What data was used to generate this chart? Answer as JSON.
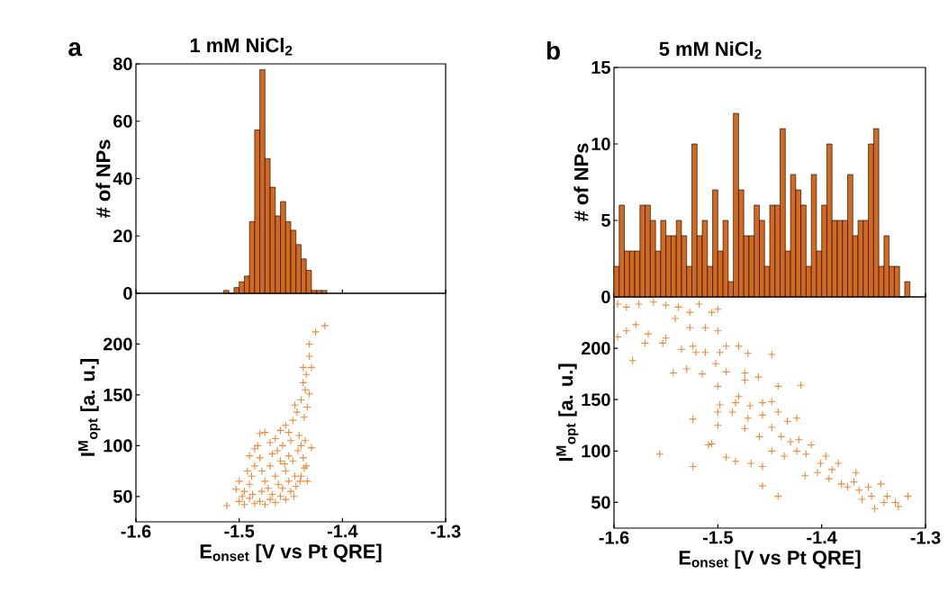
{
  "chart_data": [
    {
      "type": "histogram",
      "title": "1 mM NiCl$_{2}$",
      "ylabel": "# of NPs",
      "annotations": [
        "a"
      ],
      "color": "#d2691e",
      "bins": [
        -1.515,
        -1.51,
        -1.505,
        -1.5,
        -1.495,
        -1.49,
        -1.485,
        -1.48,
        -1.475,
        -1.47,
        -1.465,
        -1.46,
        -1.455,
        -1.45,
        -1.445,
        -1.44,
        -1.435,
        -1.43,
        -1.425,
        -1.42,
        -1.415
      ],
      "values": [
        1,
        0,
        2,
        4,
        6,
        25,
        57,
        78,
        47,
        37,
        27,
        32,
        25,
        22,
        17,
        12,
        8,
        1,
        1,
        1
      ],
      "xlim": [
        -1.6,
        -1.3
      ],
      "ylim": [
        0,
        80
      ],
      "xticks": [
        {
          "value": -1.6,
          "label": null
        },
        {
          "value": -1.5,
          "label": null
        },
        {
          "value": -1.4,
          "label": null
        },
        {
          "value": -1.3,
          "label": null
        }
      ],
      "yticks": [
        0,
        20,
        40,
        60,
        80
      ],
      "tick_labels": "y"
    },
    {
      "type": "scatter",
      "xlabel": "E$_{onset}$ [V vs Pt QRE]",
      "ylabel": "I$^{M}$$_{opt}$ [a. u.]",
      "color": "#f0893a",
      "marker": "cross",
      "x": [
        -1.512,
        -1.503,
        -1.5,
        -1.495,
        -1.49,
        -1.485,
        -1.48,
        -1.475,
        -1.47,
        -1.465,
        -1.46,
        -1.455,
        -1.45,
        -1.445,
        -1.44,
        -1.435,
        -1.495,
        -1.49,
        -1.488,
        -1.485,
        -1.49,
        -1.485,
        -1.48,
        -1.478,
        -1.475,
        -1.472,
        -1.47,
        -1.468,
        -1.465,
        -1.462,
        -1.46,
        -1.458,
        -1.455,
        -1.452,
        -1.45,
        -1.448,
        -1.446,
        -1.443,
        -1.442,
        -1.44,
        -1.438,
        -1.437,
        -1.441,
        -1.436,
        -1.48,
        -1.475,
        -1.482,
        -1.47,
        -1.465,
        -1.46,
        -1.455,
        -1.452,
        -1.448,
        -1.446,
        -1.444,
        -1.44,
        -1.437,
        -1.434,
        -1.432,
        -1.436,
        -1.438,
        -1.435,
        -1.438,
        -1.43,
        -1.432,
        -1.432,
        -1.426,
        -1.417,
        -1.43,
        -1.434,
        -1.5,
        -1.492,
        -1.497,
        -1.487,
        -1.478,
        -1.468,
        -1.458,
        -1.452,
        -1.447,
        -1.463,
        -1.456
      ],
      "values": [
        41,
        57,
        45,
        42,
        48,
        43,
        45,
        42,
        47,
        44,
        50,
        47,
        55,
        60,
        70,
        80,
        55,
        62,
        70,
        80,
        90,
        97,
        88,
        75,
        65,
        58,
        80,
        92,
        70,
        62,
        85,
        100,
        75,
        90,
        105,
        85,
        70,
        95,
        110,
        100,
        88,
        78,
        65,
        105,
        112,
        113,
        100,
        103,
        107,
        115,
        120,
        113,
        125,
        140,
        133,
        145,
        128,
        138,
        151,
        155,
        162,
        170,
        177,
        177,
        188,
        200,
        212,
        218,
        98,
        65,
        65,
        75,
        50,
        52,
        55,
        52,
        58,
        65,
        50,
        95,
        82
      ],
      "xlim": [
        -1.6,
        -1.3
      ],
      "ylim": [
        25,
        250
      ],
      "xticks": [
        -1.6,
        -1.5,
        -1.4,
        -1.3
      ],
      "yticks": [
        50,
        100,
        150,
        200
      ]
    },
    {
      "type": "histogram",
      "title": "5 mM NiCl$_{2}$",
      "ylabel": "# of NPs",
      "annotations": [
        "b"
      ],
      "color": "#d2691e",
      "bins": [
        -1.6,
        -1.595,
        -1.59,
        -1.585,
        -1.58,
        -1.575,
        -1.57,
        -1.565,
        -1.56,
        -1.555,
        -1.55,
        -1.545,
        -1.54,
        -1.535,
        -1.53,
        -1.525,
        -1.52,
        -1.515,
        -1.51,
        -1.505,
        -1.5,
        -1.495,
        -1.49,
        -1.485,
        -1.48,
        -1.475,
        -1.47,
        -1.465,
        -1.46,
        -1.455,
        -1.45,
        -1.445,
        -1.44,
        -1.435,
        -1.43,
        -1.425,
        -1.42,
        -1.415,
        -1.41,
        -1.405,
        -1.4,
        -1.395,
        -1.39,
        -1.385,
        -1.38,
        -1.375,
        -1.37,
        -1.365,
        -1.36,
        -1.355,
        -1.35,
        -1.345,
        -1.34,
        -1.335,
        -1.33,
        -1.325,
        -1.32,
        -1.315
      ],
      "values": [
        2,
        6,
        3,
        3,
        3,
        6,
        6,
        5,
        3,
        5,
        4,
        4,
        5,
        4,
        2,
        10,
        4,
        5,
        2,
        7,
        3,
        5,
        1,
        12,
        7,
        4,
        4,
        6,
        5,
        2,
        6,
        6,
        11,
        3,
        8,
        7,
        6,
        2,
        8,
        3,
        6,
        10,
        5,
        5,
        5,
        8,
        4,
        5,
        5,
        10,
        11,
        2,
        4,
        2,
        2,
        0,
        1
      ],
      "xlim": [
        -1.6,
        -1.3
      ],
      "ylim": [
        0,
        15
      ],
      "xticks": [
        {
          "value": -1.6,
          "label": null
        },
        {
          "value": -1.5,
          "label": null
        },
        {
          "value": -1.4,
          "label": null
        },
        {
          "value": -1.3,
          "label": null
        }
      ],
      "yticks": [
        0,
        5,
        10,
        15
      ],
      "tick_labels": "y"
    },
    {
      "type": "scatter",
      "xlabel": "E$_{onset}$ [V vs Pt QRE]",
      "ylabel": "I$^{M}$$_{opt}$ [a. u.]",
      "color": "#f0893a",
      "marker": "cross",
      "x": [
        -1.5965,
        -1.588,
        -1.576,
        -1.562,
        -1.55,
        -1.538,
        -1.527,
        -1.518,
        -1.506,
        -1.5,
        -1.5965,
        -1.588,
        -1.579,
        -1.57,
        -1.567,
        -1.553,
        -1.55,
        -1.541,
        -1.535,
        -1.527,
        -1.524,
        -1.521,
        -1.512,
        -1.512,
        -1.5,
        -1.498,
        -1.492,
        -1.48,
        -1.471,
        -1.448,
        -1.582,
        -1.543,
        -1.53,
        -1.515,
        -1.502,
        -1.492,
        -1.474,
        -1.461,
        -1.5,
        -1.474,
        -1.442,
        -1.42,
        -1.498,
        -1.48,
        -1.486,
        -1.483,
        -1.469,
        -1.457,
        -1.448,
        -1.471,
        -1.457,
        -1.442,
        -1.433,
        -1.424,
        -1.5,
        -1.5,
        -1.524,
        -1.474,
        -1.46,
        -1.448,
        -1.439,
        -1.43,
        -1.422,
        -1.41,
        -1.509,
        -1.506,
        -1.448,
        -1.436,
        -1.424,
        -1.415,
        -1.396,
        -1.556,
        -1.492,
        -1.483,
        -1.468,
        -1.457,
        -1.524,
        -1.457,
        -1.442,
        -1.416,
        -1.404,
        -1.393,
        -1.384,
        -1.381,
        -1.369,
        -1.367,
        -1.364,
        -1.355,
        -1.352,
        -1.349,
        -1.343,
        -1.337,
        -1.329,
        -1.326,
        -1.317,
        -1.375,
        -1.361,
        -1.34,
        -1.401,
        -1.39
      ],
      "values": [
        243,
        240,
        243,
        245,
        242,
        240,
        235,
        243,
        235,
        238,
        211,
        217,
        223,
        205,
        214,
        205,
        210,
        229,
        199,
        220,
        202,
        196,
        220,
        196,
        217,
        196,
        202,
        202,
        195,
        194,
        188,
        176,
        180,
        175,
        185,
        177,
        176,
        172,
        163,
        169,
        163,
        164,
        145,
        153,
        138,
        147,
        144,
        147,
        148,
        132,
        135,
        138,
        129,
        132,
        138,
        125,
        131,
        122,
        114,
        123,
        114,
        109,
        111,
        106,
        106,
        107,
        100,
        95,
        100,
        97,
        95,
        97,
        94,
        90,
        88,
        85,
        85,
        66,
        56,
        76,
        79,
        73,
        88,
        68,
        70,
        79,
        62,
        65,
        56,
        44,
        68,
        56,
        50,
        46,
        56,
        65,
        53,
        50,
        88,
        82
      ],
      "xlim": [
        -1.6,
        -1.3
      ],
      "ylim": [
        25,
        250
      ],
      "xticks": [
        -1.6,
        -1.5,
        -1.4,
        -1.3
      ],
      "yticks": [
        50,
        100,
        150,
        200
      ]
    }
  ]
}
